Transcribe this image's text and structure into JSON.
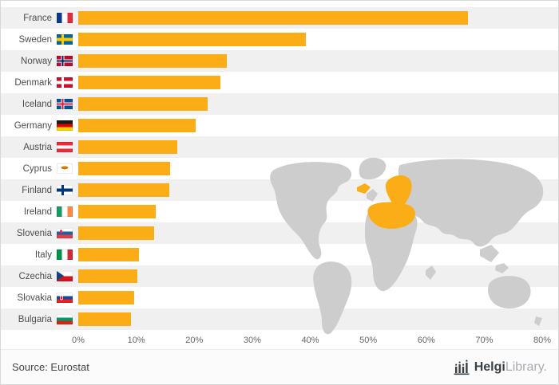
{
  "chart_data": {
    "type": "bar",
    "orientation": "horizontal",
    "title": "",
    "xlabel": "",
    "ylabel": "",
    "categories": [
      "France",
      "Sweden",
      "Norway",
      "Denmark",
      "Iceland",
      "Germany",
      "Austria",
      "Cyprus",
      "Finland",
      "Ireland",
      "Slovenia",
      "Italy",
      "Czechia",
      "Slovakia",
      "Bulgaria"
    ],
    "values": [
      67.2,
      39.3,
      25.6,
      24.5,
      22.3,
      20.2,
      17.1,
      15.9,
      15.7,
      13.3,
      13.1,
      10.4,
      10.2,
      9.7,
      9.1
    ],
    "value_unit": "%",
    "xlim": [
      0,
      80
    ],
    "x_ticks": [
      "0%",
      "10%",
      "20%",
      "30%",
      "40%",
      "50%",
      "60%",
      "70%",
      "80%"
    ],
    "grid": false,
    "legend_position": "none",
    "bar_color": "#FBAD18",
    "stripe_color": "#F0F0F0",
    "flags": [
      "fr",
      "se",
      "no",
      "dk",
      "is",
      "de",
      "at",
      "cy",
      "fi",
      "ie",
      "si",
      "it",
      "cz",
      "sk",
      "bg"
    ],
    "map": {
      "description": "gray world map background with European countries highlighted in orange",
      "land_color": "#CDCDCD",
      "highlight_color": "#FBAD18"
    }
  },
  "footer": {
    "source": "Source: Eurostat",
    "logo": {
      "bold": "Helgi",
      "light": "Library."
    }
  }
}
